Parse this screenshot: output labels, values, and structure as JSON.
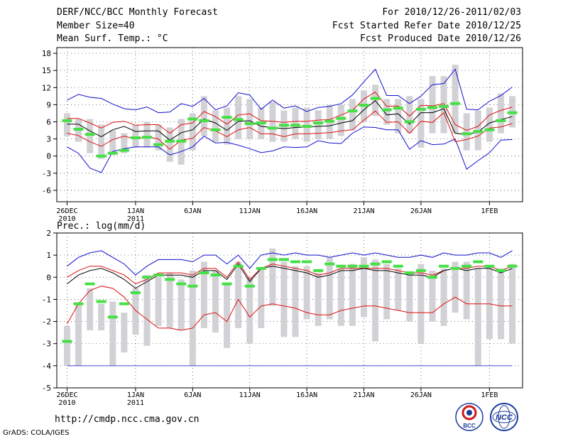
{
  "header": {
    "title": "DERF/NCC/BCC Monthly Forecast",
    "member_size": "Member Size=40",
    "variable": "Mean Surf. Temp.: °C",
    "period": "For 2010/12/26-2011/02/03",
    "start_date": "Fcst Started Refer Date 2010/12/25",
    "produced_date": "Fcst Produced Date 2010/12/26"
  },
  "footer": {
    "url": "http://cmdp.ncc.cma.gov.cn",
    "credit": "GrADS: COLA/IGES",
    "logo_bcc": "BCC",
    "logo_ncc": "NCC"
  },
  "colors": {
    "box": "#d2d2d6",
    "median": "#44e044",
    "mean": "#000000",
    "sd": "#e01010",
    "extreme": "#1010d0",
    "grid": "#555555"
  },
  "chart_data": [
    {
      "type": "box",
      "title": "Mean Surf. Temp.: °C",
      "ylim": [
        -8,
        19
      ],
      "yticks": [
        -6,
        -3,
        0,
        3,
        6,
        9,
        12,
        15,
        18
      ],
      "xticks": [
        {
          "day": 1,
          "label": "26DEC",
          "sub": "2010"
        },
        {
          "day": 7,
          "label": "1JAN",
          "sub": "2011"
        },
        {
          "day": 12,
          "label": "6JAN",
          "sub": ""
        },
        {
          "day": 17,
          "label": "11JAN",
          "sub": ""
        },
        {
          "day": 22,
          "label": "16JAN",
          "sub": ""
        },
        {
          "day": 27,
          "label": "21JAN",
          "sub": ""
        },
        {
          "day": 32,
          "label": "26JAN",
          "sub": ""
        },
        {
          "day": 38,
          "label": "1FEB",
          "sub": ""
        }
      ],
      "days": [
        1,
        2,
        3,
        4,
        5,
        6,
        7,
        8,
        9,
        10,
        11,
        12,
        13,
        14,
        15,
        16,
        17,
        18,
        19,
        20,
        21,
        22,
        23,
        24,
        25,
        26,
        27,
        28,
        29,
        30,
        31,
        32,
        33,
        34,
        35,
        36,
        37,
        38,
        39,
        40
      ],
      "box_low": [
        3.5,
        2.5,
        0.5,
        -0.5,
        0.2,
        0.5,
        1.5,
        1.5,
        1.0,
        -1.0,
        -1.5,
        1.0,
        3.5,
        2.5,
        2.0,
        3.0,
        3.0,
        3.0,
        2.5,
        2.5,
        3.0,
        2.5,
        3.0,
        3.0,
        3.5,
        4.5,
        6.0,
        7.0,
        5.5,
        4.0,
        4.0,
        1.5,
        4.0,
        4.0,
        4.0,
        1.0,
        1.0,
        2.5,
        4.0,
        5.0
      ],
      "box_high": [
        7.5,
        6.5,
        6.5,
        5.5,
        4.5,
        4.0,
        5.5,
        6.0,
        5.5,
        5.0,
        6.5,
        7.5,
        10.5,
        8.0,
        8.5,
        10.5,
        10.0,
        8.5,
        9.5,
        8.0,
        8.5,
        8.5,
        8.0,
        9.0,
        9.0,
        10.0,
        11.5,
        12.5,
        10.0,
        10.0,
        10.5,
        10.0,
        14.0,
        14.0,
        16.0,
        7.5,
        8.0,
        8.5,
        11.0,
        10.5
      ],
      "median": [
        6.2,
        4.7,
        3.8,
        0.0,
        0.5,
        1.0,
        3.2,
        3.3,
        2.0,
        2.6,
        2.6,
        6.5,
        6.2,
        4.6,
        6.8,
        6.4,
        5.7,
        5.8,
        4.9,
        5.4,
        5.4,
        5.2,
        5.8,
        6.1,
        6.6,
        7.9,
        8.9,
        10.1,
        8.1,
        8.4,
        6.0,
        8.2,
        8.5,
        8.7,
        9.2,
        3.9,
        4.3,
        4.6,
        6.2,
        7.6
      ],
      "mean": [
        5.6,
        5.6,
        4.4,
        3.4,
        4.6,
        5.2,
        4.3,
        4.4,
        4.4,
        2.8,
        4.1,
        4.6,
        6.5,
        5.8,
        4.5,
        6.1,
        6.2,
        5.2,
        5.0,
        4.8,
        5.0,
        5.1,
        5.2,
        5.3,
        5.8,
        6.2,
        8.1,
        9.7,
        7.2,
        7.4,
        5.6,
        7.6,
        7.6,
        8.3,
        4.0,
        3.8,
        4.2,
        5.8,
        6.4,
        6.9
      ],
      "sd_upper": [
        6.6,
        6.6,
        5.8,
        4.9,
        5.9,
        6.1,
        5.4,
        5.5,
        5.5,
        4.0,
        5.5,
        5.8,
        7.8,
        6.9,
        5.6,
        7.2,
        7.4,
        6.2,
        6.1,
        5.9,
        6.1,
        6.1,
        6.3,
        6.4,
        7.2,
        8.0,
        10.0,
        11.2,
        8.7,
        8.8,
        7.0,
        8.9,
        8.8,
        9.2,
        5.5,
        4.5,
        5.2,
        7.2,
        8.0,
        8.6
      ],
      "sd_lower": [
        4.0,
        3.6,
        2.5,
        1.7,
        2.9,
        3.5,
        3.0,
        3.4,
        3.0,
        1.2,
        2.8,
        3.1,
        5.0,
        4.4,
        3.4,
        4.6,
        5.0,
        3.9,
        3.9,
        3.4,
        3.9,
        3.9,
        4.0,
        4.1,
        4.4,
        4.6,
        6.3,
        7.9,
        5.9,
        6.0,
        4.0,
        6.1,
        5.9,
        7.6,
        2.5,
        2.9,
        3.5,
        4.9,
        5.1,
        5.7
      ],
      "max": [
        9.8,
        10.8,
        10.3,
        10.1,
        9.1,
        8.3,
        8.1,
        8.6,
        7.6,
        7.7,
        9.2,
        8.7,
        10.1,
        8.1,
        8.8,
        11.1,
        10.7,
        8.2,
        9.8,
        8.4,
        8.8,
        7.8,
        8.5,
        8.7,
        9.2,
        10.7,
        13.0,
        15.2,
        10.6,
        10.6,
        9.2,
        10.5,
        12.5,
        12.7,
        15.2,
        8.2,
        8.1,
        9.6,
        10.6,
        12.1
      ],
      "min": [
        1.6,
        0.5,
        -2.1,
        -2.9,
        0.8,
        1.3,
        1.6,
        1.6,
        1.6,
        0.2,
        0.8,
        1.6,
        3.5,
        2.3,
        2.4,
        1.9,
        1.3,
        0.6,
        0.9,
        1.6,
        1.5,
        1.6,
        2.7,
        2.3,
        2.2,
        4.0,
        5.1,
        5.0,
        4.6,
        4.6,
        1.2,
        2.7,
        2.0,
        2.1,
        3.0,
        -2.3,
        -0.8,
        0.6,
        2.8,
        2.9
      ]
    },
    {
      "type": "box",
      "title": "Prec.: log(mm/d)",
      "ylim": [
        -5,
        2
      ],
      "yticks": [
        -5,
        -4,
        -3,
        -2,
        -1,
        0,
        1,
        2
      ],
      "xticks": [
        {
          "day": 1,
          "label": "26DEC",
          "sub": "2010"
        },
        {
          "day": 7,
          "label": "1JAN",
          "sub": "2011"
        },
        {
          "day": 12,
          "label": "6JAN",
          "sub": ""
        },
        {
          "day": 17,
          "label": "11JAN",
          "sub": ""
        },
        {
          "day": 22,
          "label": "16JAN",
          "sub": ""
        },
        {
          "day": 27,
          "label": "21JAN",
          "sub": ""
        },
        {
          "day": 32,
          "label": "26JAN",
          "sub": ""
        },
        {
          "day": 38,
          "label": "1FEB",
          "sub": ""
        }
      ],
      "days": [
        1,
        2,
        3,
        4,
        5,
        6,
        7,
        8,
        9,
        10,
        11,
        12,
        13,
        14,
        15,
        16,
        17,
        18,
        19,
        20,
        21,
        22,
        23,
        24,
        25,
        26,
        27,
        28,
        29,
        30,
        31,
        32,
        33,
        34,
        35,
        36,
        37,
        38,
        39,
        40
      ],
      "box_low": [
        -4.0,
        -4.0,
        -2.4,
        -2.4,
        -4.0,
        -3.4,
        -2.6,
        -3.1,
        -2.2,
        -2.3,
        -2.4,
        -4.0,
        -2.3,
        -2.5,
        -3.2,
        -2.3,
        -3.0,
        -2.3,
        -1.3,
        -2.7,
        -2.7,
        -1.9,
        -2.2,
        -1.9,
        -2.2,
        -2.2,
        -1.8,
        -2.9,
        -1.9,
        -1.5,
        -2.0,
        -3.0,
        -2.0,
        -2.2,
        -1.6,
        -1.9,
        -4.0,
        -2.8,
        -2.8,
        -3.0
      ],
      "box_high": [
        -2.2,
        -1.2,
        -0.5,
        -1.2,
        -1.1,
        -1.6,
        -0.5,
        0.1,
        0.0,
        0.2,
        -0.1,
        0.3,
        0.7,
        0.3,
        -0.3,
        0.7,
        0.0,
        0.4,
        1.3,
        0.7,
        0.5,
        0.5,
        0.2,
        0.9,
        0.4,
        0.6,
        0.9,
        0.8,
        0.6,
        0.4,
        0.2,
        0.6,
        0.3,
        0.4,
        0.7,
        0.7,
        0.4,
        0.5,
        0.4,
        0.6
      ],
      "median": [
        -2.9,
        -1.2,
        -0.3,
        -1.1,
        -1.8,
        -1.2,
        -0.7,
        0.0,
        0.1,
        -0.1,
        -0.3,
        -0.4,
        0.2,
        0.1,
        -0.3,
        0.5,
        -0.4,
        0.4,
        0.8,
        0.8,
        0.7,
        0.7,
        0.3,
        0.6,
        0.5,
        0.5,
        0.5,
        0.6,
        0.7,
        0.5,
        0.2,
        0.3,
        0.0,
        0.5,
        0.4,
        0.5,
        0.7,
        0.5,
        0.3,
        0.5
      ],
      "mean": [
        -0.3,
        0.1,
        0.3,
        0.4,
        0.2,
        -0.1,
        -0.5,
        -0.2,
        0.1,
        0.1,
        0.1,
        0.0,
        0.3,
        0.3,
        -0.1,
        0.6,
        -0.2,
        0.4,
        0.5,
        0.4,
        0.3,
        0.2,
        0.0,
        0.1,
        0.3,
        0.3,
        0.4,
        0.3,
        0.3,
        0.2,
        0.1,
        0.1,
        0.0,
        0.3,
        0.4,
        0.3,
        0.4,
        0.4,
        0.2,
        0.4
      ],
      "sd_upper": [
        0.0,
        0.3,
        0.5,
        0.5,
        0.3,
        0.1,
        -0.3,
        -0.1,
        0.2,
        0.2,
        0.2,
        0.1,
        0.4,
        0.4,
        0.0,
        0.7,
        -0.1,
        0.4,
        0.6,
        0.5,
        0.4,
        0.3,
        0.1,
        0.2,
        0.4,
        0.4,
        0.4,
        0.4,
        0.4,
        0.3,
        0.2,
        0.2,
        0.1,
        0.3,
        0.4,
        0.4,
        0.5,
        0.5,
        0.3,
        0.5
      ],
      "sd_lower": [
        -2.1,
        -1.2,
        -0.6,
        -0.4,
        -0.5,
        -0.9,
        -1.5,
        -1.9,
        -2.3,
        -2.3,
        -2.4,
        -2.3,
        -1.7,
        -1.6,
        -2.0,
        -1.0,
        -1.8,
        -1.3,
        -1.2,
        -1.3,
        -1.4,
        -1.6,
        -1.7,
        -1.7,
        -1.5,
        -1.4,
        -1.3,
        -1.3,
        -1.4,
        -1.5,
        -1.6,
        -1.6,
        -1.6,
        -1.2,
        -0.9,
        -1.2,
        -1.2,
        -1.2,
        -1.3,
        -1.3
      ],
      "max": [
        0.5,
        0.9,
        1.1,
        1.2,
        0.9,
        0.6,
        0.1,
        0.5,
        0.8,
        0.8,
        0.8,
        0.7,
        1.0,
        1.0,
        0.6,
        1.0,
        0.4,
        1.0,
        1.1,
        1.0,
        1.1,
        1.0,
        1.0,
        0.9,
        1.0,
        1.1,
        1.0,
        1.1,
        1.0,
        0.9,
        0.9,
        1.0,
        0.9,
        1.1,
        1.0,
        1.0,
        1.1,
        1.1,
        0.9,
        1.2
      ],
      "min": [
        -4.0,
        -4.0,
        -4.0,
        -4.0,
        -4.0,
        -4.0,
        -4.0,
        -4.0,
        -4.0,
        -4.0,
        -4.0,
        -4.0,
        -4.0,
        -4.0,
        -4.0,
        -4.0,
        -4.0,
        -4.0,
        -4.0,
        -4.0,
        -4.0,
        -4.0,
        -4.0,
        -4.0,
        -4.0,
        -4.0,
        -4.0,
        -4.0,
        -4.0,
        -4.0,
        -4.0,
        -4.0,
        -4.0,
        -4.0,
        -4.0,
        -4.0,
        -4.0,
        -4.0,
        -4.0,
        -4.0
      ]
    }
  ]
}
